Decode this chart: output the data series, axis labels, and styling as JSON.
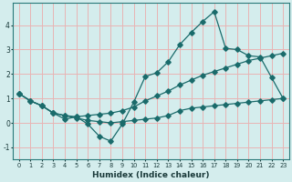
{
  "xlabel": "Humidex (Indice chaleur)",
  "background_color": "#d4eded",
  "grid_color": "#e8b4b4",
  "line_color": "#1a6b6b",
  "xlim": [
    -0.5,
    23.5
  ],
  "ylim": [
    -1.5,
    4.9
  ],
  "xticks": [
    0,
    1,
    2,
    3,
    4,
    5,
    6,
    7,
    8,
    9,
    10,
    11,
    12,
    13,
    14,
    15,
    16,
    17,
    18,
    19,
    20,
    21,
    22,
    23
  ],
  "yticks": [
    -1,
    0,
    1,
    2,
    3,
    4
  ],
  "line1_x": [
    0,
    1,
    2,
    3,
    4,
    5,
    6,
    7,
    8,
    9,
    10,
    11,
    12,
    13,
    14,
    15,
    16,
    17,
    18,
    19,
    20,
    21,
    22,
    23
  ],
  "line1_y": [
    1.2,
    0.9,
    0.7,
    0.4,
    0.15,
    0.25,
    -0.05,
    -0.55,
    -0.75,
    -0.05,
    0.85,
    1.9,
    2.05,
    2.5,
    3.2,
    3.7,
    4.15,
    4.55,
    3.05,
    3.0,
    2.75,
    2.7,
    1.85,
    1.0
  ],
  "line2_x": [
    0,
    1,
    2,
    3,
    4,
    5,
    6,
    7,
    8,
    9,
    10,
    11,
    12,
    13,
    14,
    15,
    16,
    17,
    18,
    19,
    20,
    21,
    22,
    23
  ],
  "line2_y": [
    1.2,
    0.9,
    0.7,
    0.4,
    0.3,
    0.25,
    0.3,
    0.35,
    0.4,
    0.5,
    0.65,
    0.9,
    1.1,
    1.3,
    1.55,
    1.75,
    1.95,
    2.1,
    2.25,
    2.4,
    2.55,
    2.65,
    2.75,
    2.85
  ],
  "line3_x": [
    0,
    1,
    2,
    3,
    4,
    5,
    6,
    7,
    8,
    9,
    10,
    11,
    12,
    13,
    14,
    15,
    16,
    17,
    18,
    19,
    20,
    21,
    22,
    23
  ],
  "line3_y": [
    1.2,
    0.9,
    0.7,
    0.4,
    0.3,
    0.2,
    0.1,
    0.05,
    0.0,
    0.05,
    0.1,
    0.15,
    0.2,
    0.3,
    0.5,
    0.6,
    0.65,
    0.7,
    0.75,
    0.8,
    0.85,
    0.9,
    0.95,
    1.0
  ]
}
